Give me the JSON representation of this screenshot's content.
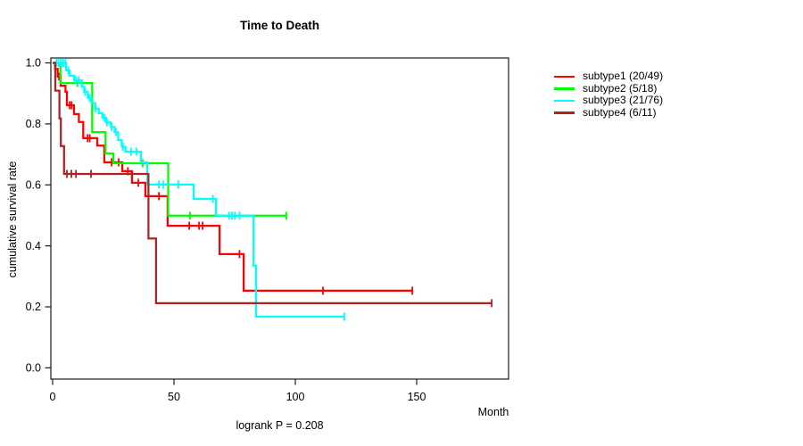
{
  "title": "Time to Death",
  "footer": "logrank P = 0.208",
  "y_axis": {
    "label": "cumulative survival rate",
    "ticks": [
      1.0,
      0.8,
      0.6,
      0.4,
      0.2,
      0.0
    ]
  },
  "x_axis": {
    "label": "Month",
    "ticks": [
      0,
      50,
      100,
      150
    ]
  },
  "chart_data": {
    "type": "line",
    "variant": "kaplan-meier-step",
    "title": "Time to Death",
    "xlabel": "Month",
    "ylabel": "cumulative survival rate",
    "annotation": "logrank P = 0.208",
    "xlim": [
      0,
      188
    ],
    "ylim": [
      0.0,
      1.05
    ],
    "x_ticks": [
      0,
      50,
      100,
      150
    ],
    "y_ticks": [
      0.0,
      0.2,
      0.4,
      0.6,
      0.8,
      1.0
    ],
    "grid": false,
    "legend_position": "right-outside",
    "series": [
      {
        "name": "subtype1 (20/49)",
        "color": "#FF0000",
        "end": 148.2,
        "steps": [
          [
            0,
            1.0
          ],
          [
            1.0,
            0.98
          ],
          [
            2.1,
            0.955
          ],
          [
            3.3,
            0.925
          ],
          [
            5.3,
            0.905
          ],
          [
            5.9,
            0.861
          ],
          [
            8.8,
            0.832
          ],
          [
            10.8,
            0.806
          ],
          [
            12.6,
            0.753
          ],
          [
            18.4,
            0.729
          ],
          [
            21.3,
            0.674
          ],
          [
            28.7,
            0.645
          ],
          [
            32.7,
            0.607
          ],
          [
            38.2,
            0.563
          ],
          [
            47.4,
            0.466
          ],
          [
            68.8,
            0.373
          ],
          [
            78.7,
            0.253
          ]
        ],
        "censors": [
          [
            2.6,
            0.955
          ],
          [
            7.0,
            0.861
          ],
          [
            7.8,
            0.861
          ],
          [
            14.4,
            0.753
          ],
          [
            15.3,
            0.753
          ],
          [
            24.3,
            0.674
          ],
          [
            27.2,
            0.674
          ],
          [
            31.0,
            0.645
          ],
          [
            35.3,
            0.607
          ],
          [
            43.8,
            0.563
          ],
          [
            56.3,
            0.466
          ],
          [
            60.3,
            0.466
          ],
          [
            61.8,
            0.466
          ],
          [
            77.0,
            0.373
          ],
          [
            111.4,
            0.253
          ],
          [
            148.2,
            0.253
          ]
        ]
      },
      {
        "name": "subtype2 (5/18)",
        "color": "#00FF00",
        "end": 96.5,
        "steps": [
          [
            0,
            1.0
          ],
          [
            3.2,
            0.934
          ],
          [
            16.3,
            0.773
          ],
          [
            21.8,
            0.703
          ],
          [
            25.0,
            0.671
          ],
          [
            47.6,
            0.499
          ]
        ],
        "censors": [
          [
            10.2,
            0.934
          ],
          [
            37.1,
            0.671
          ],
          [
            56.6,
            0.499
          ],
          [
            96.3,
            0.499
          ]
        ]
      },
      {
        "name": "subtype3 (21/76)",
        "color": "#00FFFF",
        "end": 120.2,
        "steps": [
          [
            0,
            1.0
          ],
          [
            5.6,
            0.975
          ],
          [
            7.0,
            0.958
          ],
          [
            8.8,
            0.943
          ],
          [
            12.0,
            0.922
          ],
          [
            13.0,
            0.905
          ],
          [
            14.5,
            0.885
          ],
          [
            16.0,
            0.868
          ],
          [
            17.5,
            0.85
          ],
          [
            19.0,
            0.835
          ],
          [
            20.5,
            0.82
          ],
          [
            22.0,
            0.805
          ],
          [
            24.0,
            0.79
          ],
          [
            25.5,
            0.773
          ],
          [
            27.0,
            0.747
          ],
          [
            28.5,
            0.725
          ],
          [
            30.0,
            0.709
          ],
          [
            36.4,
            0.674
          ],
          [
            39.0,
            0.601
          ],
          [
            58.1,
            0.554
          ],
          [
            67.3,
            0.499
          ],
          [
            82.8,
            0.335
          ],
          [
            83.8,
            0.168
          ]
        ],
        "censors": [
          [
            1.6,
            1.0
          ],
          [
            2.5,
            1.0
          ],
          [
            3.4,
            1.0
          ],
          [
            4.3,
            1.0
          ],
          [
            5.3,
            1.0
          ],
          [
            6.5,
            0.975
          ],
          [
            9.5,
            0.943
          ],
          [
            10.7,
            0.943
          ],
          [
            13.4,
            0.905
          ],
          [
            15.2,
            0.885
          ],
          [
            17.8,
            0.85
          ],
          [
            21.3,
            0.82
          ],
          [
            22.4,
            0.805
          ],
          [
            24.3,
            0.79
          ],
          [
            26.1,
            0.773
          ],
          [
            29.0,
            0.725
          ],
          [
            32.3,
            0.709
          ],
          [
            34.6,
            0.709
          ],
          [
            43.8,
            0.601
          ],
          [
            45.6,
            0.601
          ],
          [
            51.8,
            0.601
          ],
          [
            66.0,
            0.554
          ],
          [
            72.7,
            0.499
          ],
          [
            73.9,
            0.499
          ],
          [
            75.1,
            0.499
          ],
          [
            77.0,
            0.499
          ],
          [
            120.2,
            0.168
          ]
        ]
      },
      {
        "name": "subtype4 (6/11)",
        "color": "#B22222",
        "end": 180.9,
        "steps": [
          [
            0,
            1.0
          ],
          [
            1.1,
            0.909
          ],
          [
            2.8,
            0.818
          ],
          [
            3.4,
            0.727
          ],
          [
            4.7,
            0.636
          ],
          [
            39.5,
            0.424
          ],
          [
            42.6,
            0.212
          ]
        ],
        "censors": [
          [
            5.9,
            0.636
          ],
          [
            7.7,
            0.636
          ],
          [
            9.6,
            0.636
          ],
          [
            15.8,
            0.636
          ],
          [
            180.9,
            0.212
          ]
        ]
      }
    ]
  }
}
